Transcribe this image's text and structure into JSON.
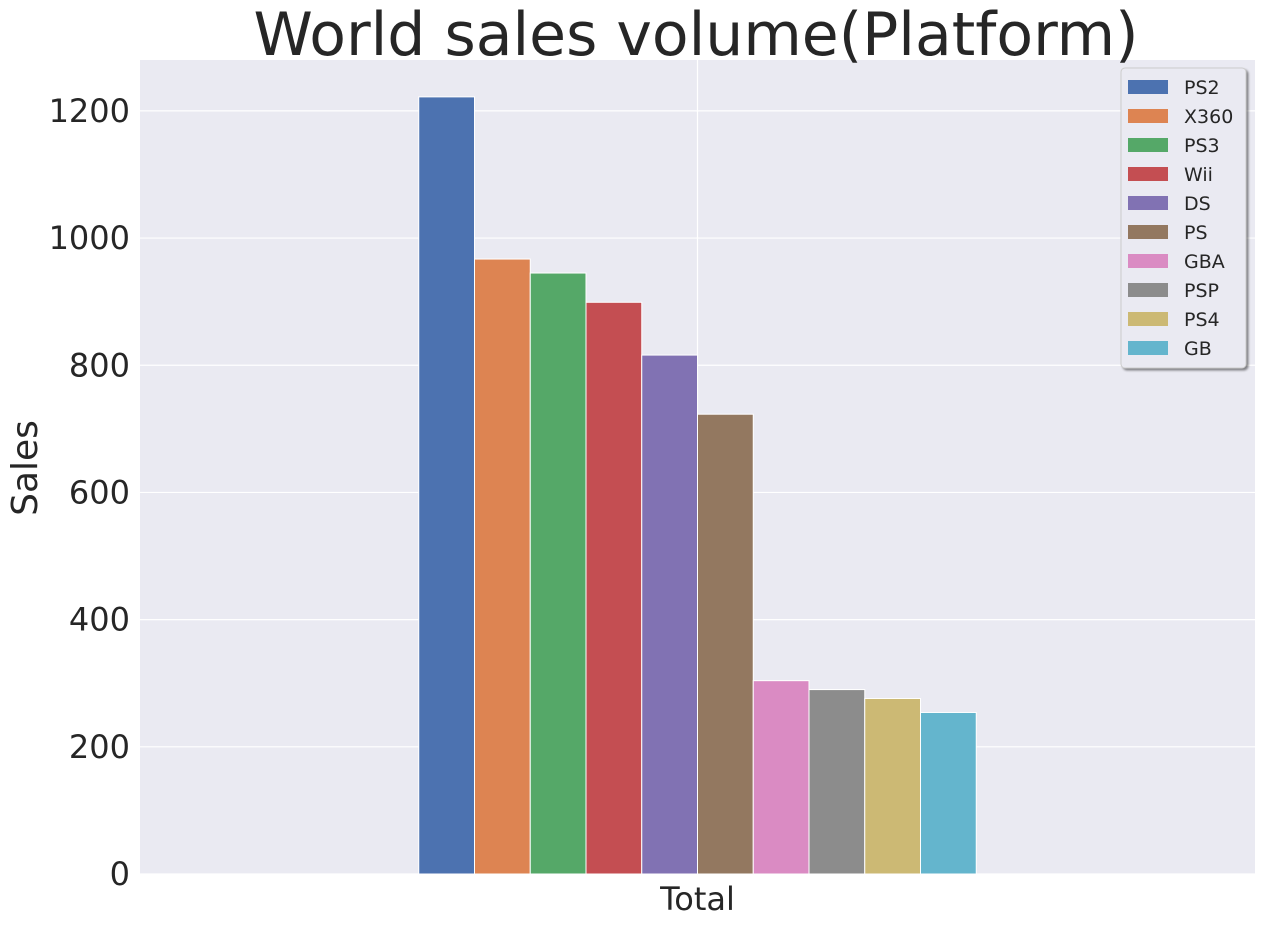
{
  "chart_data": {
    "type": "bar",
    "title": "World sales volume(Platform)",
    "xlabel": "",
    "ylabel": "Sales",
    "categories": [
      "Total"
    ],
    "ylim": [
      0,
      1280
    ],
    "yticks": [
      0,
      200,
      400,
      600,
      800,
      1000,
      1200
    ],
    "grid": true,
    "legend_position": "top-right",
    "series": [
      {
        "name": "PS2",
        "values": [
          1222
        ],
        "color": "#4c72b0"
      },
      {
        "name": "X360",
        "values": [
          967
        ],
        "color": "#dd8452"
      },
      {
        "name": "PS3",
        "values": [
          945
        ],
        "color": "#55a868"
      },
      {
        "name": "Wii",
        "values": [
          899
        ],
        "color": "#c44e52"
      },
      {
        "name": "DS",
        "values": [
          816
        ],
        "color": "#8172b3"
      },
      {
        "name": "PS",
        "values": [
          723
        ],
        "color": "#937860"
      },
      {
        "name": "GBA",
        "values": [
          304
        ],
        "color": "#da8bc3"
      },
      {
        "name": "PSP",
        "values": [
          290
        ],
        "color": "#8c8c8c"
      },
      {
        "name": "PS4",
        "values": [
          276
        ],
        "color": "#ccb974"
      },
      {
        "name": "GB",
        "values": [
          254
        ],
        "color": "#64b5cd"
      }
    ]
  },
  "style": {
    "plot_background": "#eaeaf2",
    "grid_color": "#ffffff"
  }
}
